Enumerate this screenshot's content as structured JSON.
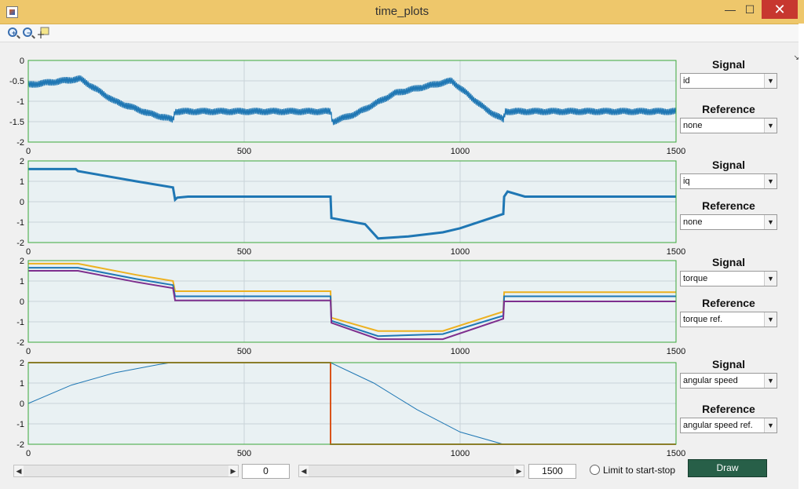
{
  "window": {
    "title": "time_plots",
    "minimize": "—",
    "maximize": "☐",
    "close": "✕"
  },
  "colors": {
    "titlebar": "#eec76b",
    "plot_bg": "#e9f1f3",
    "axis_box": "#3aa83a",
    "series_blue": "#1f77b4",
    "series_orange": "#edb120",
    "series_purple": "#7e2f8e",
    "ref_orange": "#d95319",
    "draw_button": "#275f48"
  },
  "toolbar": {
    "icons": [
      "zoom-in-icon",
      "zoom-out-icon",
      "data-cursor-icon"
    ],
    "corner_glyph": "↘"
  },
  "plots": [
    {
      "signal_label": "Signal",
      "signal_value": "id",
      "reference_label": "Reference",
      "reference_value": "none",
      "yticks": [
        "0",
        "-0.5",
        "-1",
        "-1.5",
        "-2"
      ],
      "xticks": [
        "0",
        "500",
        "1000",
        "1500"
      ]
    },
    {
      "signal_label": "Signal",
      "signal_value": "iq",
      "reference_label": "Reference",
      "reference_value": "none",
      "yticks": [
        "2",
        "1",
        "0",
        "-1",
        "-2"
      ],
      "xticks": [
        "0",
        "500",
        "1000",
        "1500"
      ]
    },
    {
      "signal_label": "Signal",
      "signal_value": "torque",
      "reference_label": "Reference",
      "reference_value": "torque ref.",
      "yticks": [
        "2",
        "1",
        "0",
        "-1",
        "-2"
      ],
      "xticks": [
        "0",
        "500",
        "1000",
        "1500"
      ]
    },
    {
      "signal_label": "Signal",
      "signal_value": "angular speed",
      "reference_label": "Reference",
      "reference_value": "angular speed ref.",
      "yticks": [
        "2",
        "1",
        "0",
        "-1",
        "-2"
      ],
      "xticks": [
        "0",
        "500",
        "1000",
        "1500"
      ]
    }
  ],
  "chart_data": [
    {
      "type": "line",
      "ylim": [
        -2,
        0
      ],
      "xlim": [
        0,
        1500
      ],
      "grid": true,
      "series": [
        {
          "color": "#1f77b4",
          "noisy": true,
          "x": [
            0,
            120,
            200,
            280,
            335,
            340,
            700,
            705,
            760,
            850,
            980,
            1060,
            1100,
            1105,
            1500
          ],
          "y": [
            -0.6,
            -0.45,
            -1.0,
            -1.3,
            -1.45,
            -1.25,
            -1.25,
            -1.5,
            -1.3,
            -0.8,
            -0.5,
            -1.2,
            -1.45,
            -1.25,
            -1.25
          ]
        }
      ]
    },
    {
      "type": "line",
      "ylim": [
        -2,
        2
      ],
      "xlim": [
        0,
        1500
      ],
      "grid": true,
      "series": [
        {
          "color": "#1f77b4",
          "noisy": false,
          "x": [
            0,
            5,
            110,
            115,
            250,
            335,
            340,
            345,
            370,
            700,
            702,
            780,
            810,
            880,
            960,
            1000,
            1100,
            1102,
            1110,
            1150,
            1500
          ],
          "y": [
            1.6,
            1.6,
            1.6,
            1.5,
            1.0,
            0.7,
            0.1,
            0.2,
            0.25,
            0.25,
            -0.8,
            -1.1,
            -1.8,
            -1.7,
            -1.5,
            -1.3,
            -0.6,
            0.25,
            0.5,
            0.25,
            0.25
          ]
        }
      ]
    },
    {
      "type": "line",
      "ylim": [
        -2,
        2
      ],
      "xlim": [
        0,
        1500
      ],
      "grid": true,
      "series": [
        {
          "color": "#edb120",
          "x": [
            0,
            115,
            250,
            335,
            340,
            700,
            702,
            810,
            960,
            1100,
            1102,
            1500
          ],
          "y": [
            1.85,
            1.85,
            1.3,
            1.0,
            0.5,
            0.5,
            -0.8,
            -1.45,
            -1.45,
            -0.5,
            0.45,
            0.45
          ]
        },
        {
          "color": "#1f77b4",
          "x": [
            0,
            115,
            250,
            335,
            340,
            700,
            702,
            810,
            960,
            1100,
            1102,
            1500
          ],
          "y": [
            1.65,
            1.65,
            1.1,
            0.8,
            0.25,
            0.25,
            -0.95,
            -1.7,
            -1.6,
            -0.7,
            0.25,
            0.25
          ]
        },
        {
          "color": "#7e2f8e",
          "x": [
            0,
            115,
            250,
            335,
            340,
            700,
            702,
            810,
            960,
            1100,
            1102,
            1500
          ],
          "y": [
            1.5,
            1.5,
            0.95,
            0.65,
            0.05,
            0.05,
            -1.05,
            -1.85,
            -1.85,
            -0.85,
            0.0,
            0.0
          ]
        }
      ]
    },
    {
      "type": "line",
      "ylim": [
        -2,
        2
      ],
      "xlim": [
        0,
        1500
      ],
      "grid": true,
      "series": [
        {
          "color": "#1f77b4",
          "x": [
            0,
            100,
            200,
            300,
            330,
            700,
            800,
            900,
            1000,
            1100
          ],
          "y": [
            0,
            0.9,
            1.5,
            1.9,
            2.0,
            2.0,
            1.0,
            -0.3,
            -1.4,
            -2.0
          ]
        },
        {
          "color": "#d95319",
          "x": [
            0,
            700,
            700,
            1500
          ],
          "y": [
            2,
            2,
            -2,
            -2
          ]
        }
      ]
    }
  ],
  "controls": {
    "start_value": "0",
    "stop_value": "1500",
    "limit_label": "Limit to start-stop",
    "draw_label": "Draw"
  }
}
